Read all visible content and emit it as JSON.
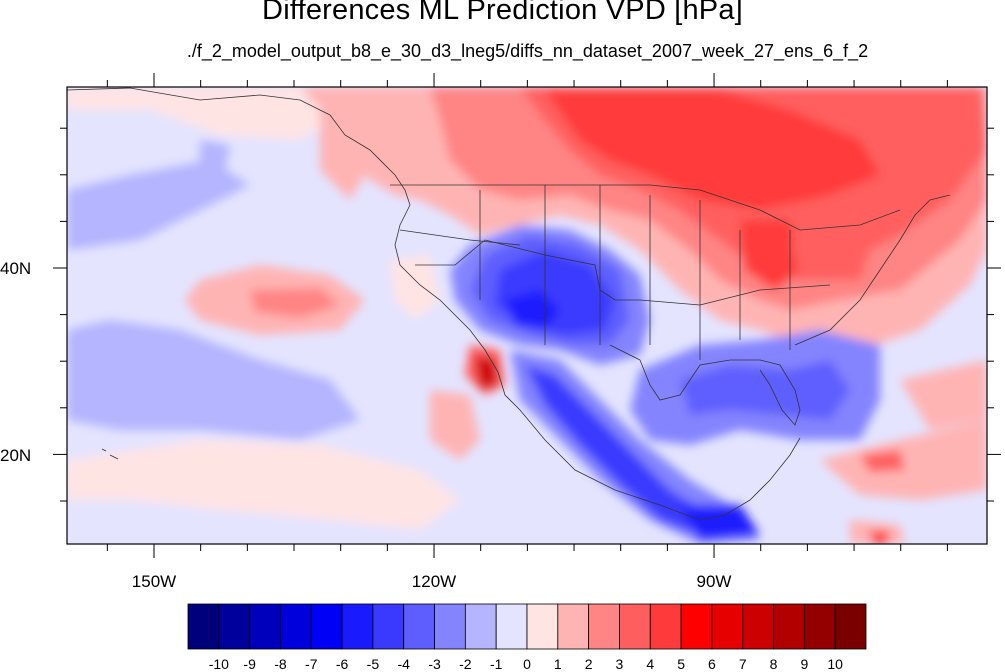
{
  "map": {
    "title": "Differences ML Prediction VPD [hPa]",
    "subtitle": "./f_2_model_output_b8_e_30_d3_lneg5/diffs_nn_dataset_2007_week_27_ens_6_f_2",
    "lat_range": [
      11,
      59
    ],
    "lon_range": [
      -160,
      -62
    ],
    "lat_labels": [
      "40N",
      "20N"
    ],
    "lon_labels": [
      "150W",
      "120W",
      "90W"
    ],
    "background_level": "-1 to 0"
  },
  "colorbar": {
    "labels": [
      "-10",
      "-9",
      "-8",
      "-7",
      "-6",
      "-5",
      "-4",
      "-3",
      "-2",
      "-1",
      "0",
      "1",
      "2",
      "3",
      "4",
      "5",
      "6",
      "7",
      "8",
      "9",
      "10"
    ],
    "colors": [
      "#00007a",
      "#00009c",
      "#0000bc",
      "#0000dc",
      "#0000f6",
      "#1a1aff",
      "#3a3aff",
      "#5e5eff",
      "#8484ff",
      "#b4b4ff",
      "#e4e4ff",
      "#ffe4e4",
      "#ffb4b4",
      "#ff8484",
      "#ff5e5e",
      "#ff3a3a",
      "#ff0000",
      "#e60000",
      "#cc0000",
      "#b00000",
      "#940000",
      "#7a0000"
    ]
  }
}
